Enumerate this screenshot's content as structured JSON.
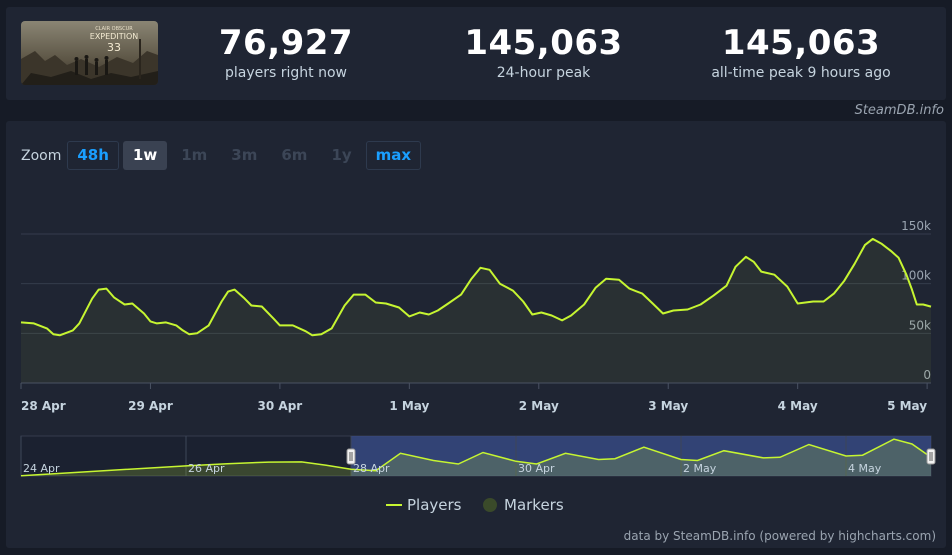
{
  "stats": [
    {
      "value": "76,927",
      "label": "players right now"
    },
    {
      "value": "145,063",
      "label": "24-hour peak"
    },
    {
      "value": "145,063",
      "label": "all-time peak 9 hours ago"
    }
  ],
  "game_image": {
    "alt": "Clair Obscur: Expedition 33 capsule",
    "logo_text": "EXPEDITION",
    "logo_number": "33",
    "small_text": "CLAIR OBSCUR"
  },
  "credit": "SteamDB.info",
  "zoom": {
    "label": "Zoom",
    "buttons": [
      {
        "label": "48h",
        "state": "link"
      },
      {
        "label": "1w",
        "state": "selected"
      },
      {
        "label": "1m",
        "state": "disabled"
      },
      {
        "label": "3m",
        "state": "disabled"
      },
      {
        "label": "6m",
        "state": "disabled"
      },
      {
        "label": "1y",
        "state": "disabled"
      },
      {
        "label": "max",
        "state": "link"
      }
    ]
  },
  "colors": {
    "line": "#c6f531",
    "marker": "#3a4a2a",
    "accent": "#1a9fff",
    "navigator_mask": "#3b4f8c"
  },
  "legend": [
    {
      "name": "Players",
      "icon": "line-icon"
    },
    {
      "name": "Markers",
      "icon": "circle-icon"
    }
  ],
  "footnote": "data by SteamDB.info (powered by highcharts.com)",
  "chart_data": {
    "type": "line",
    "ylim": [
      0,
      150000
    ],
    "yticks": [
      {
        "value": 150000,
        "label": "150k"
      },
      {
        "value": 100000,
        "label": "100k"
      },
      {
        "value": 50000,
        "label": "50k"
      },
      {
        "value": 0,
        "label": "0"
      }
    ],
    "xticks": [
      {
        "x": 0,
        "label": "28 Apr"
      },
      {
        "x": 1,
        "label": "29 Apr"
      },
      {
        "x": 2,
        "label": "30 Apr"
      },
      {
        "x": 3,
        "label": "1 May"
      },
      {
        "x": 4,
        "label": "2 May"
      },
      {
        "x": 5,
        "label": "3 May"
      },
      {
        "x": 6,
        "label": "4 May"
      },
      {
        "x": 7,
        "label": "5 May"
      }
    ],
    "x_unit": "days since 28 Apr 00:00",
    "grid": true,
    "legend_position": "bottom",
    "series": [
      {
        "name": "Players",
        "points": [
          [
            0.0,
            61000
          ],
          [
            0.1,
            60000
          ],
          [
            0.2,
            55000
          ],
          [
            0.25,
            49000
          ],
          [
            0.3,
            48000
          ],
          [
            0.4,
            53000
          ],
          [
            0.45,
            60000
          ],
          [
            0.55,
            85000
          ],
          [
            0.6,
            94000
          ],
          [
            0.66,
            95000
          ],
          [
            0.72,
            86000
          ],
          [
            0.8,
            79000
          ],
          [
            0.86,
            80000
          ],
          [
            0.95,
            70000
          ],
          [
            1.0,
            62000
          ],
          [
            1.05,
            60000
          ],
          [
            1.12,
            61000
          ],
          [
            1.2,
            58000
          ],
          [
            1.25,
            53000
          ],
          [
            1.3,
            49000
          ],
          [
            1.36,
            50000
          ],
          [
            1.45,
            58000
          ],
          [
            1.55,
            82000
          ],
          [
            1.6,
            92000
          ],
          [
            1.65,
            94000
          ],
          [
            1.72,
            86000
          ],
          [
            1.78,
            78000
          ],
          [
            1.86,
            77000
          ],
          [
            1.95,
            65000
          ],
          [
            2.0,
            58000
          ],
          [
            2.1,
            58000
          ],
          [
            2.2,
            52000
          ],
          [
            2.25,
            48000
          ],
          [
            2.32,
            49000
          ],
          [
            2.4,
            55000
          ],
          [
            2.5,
            78000
          ],
          [
            2.57,
            89000
          ],
          [
            2.66,
            89000
          ],
          [
            2.74,
            81000
          ],
          [
            2.82,
            80000
          ],
          [
            2.92,
            76000
          ],
          [
            3.0,
            67000
          ],
          [
            3.08,
            71000
          ],
          [
            3.15,
            69000
          ],
          [
            3.22,
            73000
          ],
          [
            3.3,
            80000
          ],
          [
            3.4,
            89000
          ],
          [
            3.48,
            105000
          ],
          [
            3.55,
            116000
          ],
          [
            3.62,
            114000
          ],
          [
            3.7,
            100000
          ],
          [
            3.8,
            93000
          ],
          [
            3.88,
            82000
          ],
          [
            3.95,
            69000
          ],
          [
            4.02,
            71000
          ],
          [
            4.1,
            68000
          ],
          [
            4.18,
            63000
          ],
          [
            4.25,
            68000
          ],
          [
            4.35,
            79000
          ],
          [
            4.44,
            96000
          ],
          [
            4.52,
            105000
          ],
          [
            4.62,
            104000
          ],
          [
            4.7,
            95000
          ],
          [
            4.8,
            90000
          ],
          [
            4.88,
            80000
          ],
          [
            4.96,
            70000
          ],
          [
            5.04,
            73000
          ],
          [
            5.15,
            74000
          ],
          [
            5.25,
            79000
          ],
          [
            5.35,
            88000
          ],
          [
            5.45,
            98000
          ],
          [
            5.52,
            117000
          ],
          [
            5.6,
            127000
          ],
          [
            5.66,
            122000
          ],
          [
            5.72,
            112000
          ],
          [
            5.82,
            109000
          ],
          [
            5.92,
            97000
          ],
          [
            6.0,
            80000
          ],
          [
            6.06,
            81000
          ],
          [
            6.12,
            82000
          ],
          [
            6.2,
            82000
          ],
          [
            6.28,
            90000
          ],
          [
            6.36,
            103000
          ],
          [
            6.44,
            120000
          ],
          [
            6.52,
            139000
          ],
          [
            6.58,
            145063
          ],
          [
            6.65,
            140000
          ],
          [
            6.72,
            133000
          ],
          [
            6.78,
            126000
          ],
          [
            6.84,
            109000
          ],
          [
            6.88,
            95000
          ],
          [
            6.92,
            79000
          ],
          [
            6.97,
            79000
          ],
          [
            7.03,
            76927
          ]
        ]
      }
    ],
    "navigator": {
      "xticks": [
        {
          "x": -4,
          "label": "24 Apr"
        },
        {
          "x": -2,
          "label": "26 Apr"
        },
        {
          "x": 0,
          "label": "28 Apr"
        },
        {
          "x": 2,
          "label": "30 Apr"
        },
        {
          "x": 4,
          "label": "2 May"
        },
        {
          "x": 6,
          "label": "4 May"
        }
      ],
      "points": [
        [
          -4.0,
          1000
        ],
        [
          -3.5,
          10000
        ],
        [
          -3.0,
          20000
        ],
        [
          -2.0,
          38000
        ],
        [
          -1.5,
          46000
        ],
        [
          -1.0,
          52000
        ],
        [
          -0.6,
          53000
        ],
        [
          -0.3,
          40000
        ],
        [
          0.0,
          25000
        ],
        [
          0.3,
          20000
        ],
        [
          0.6,
          85000
        ],
        [
          1.0,
          58000
        ],
        [
          1.3,
          45000
        ],
        [
          1.6,
          88000
        ],
        [
          2.0,
          55000
        ],
        [
          2.25,
          45000
        ],
        [
          2.6,
          85000
        ],
        [
          3.0,
          62000
        ],
        [
          3.2,
          65000
        ],
        [
          3.55,
          108000
        ],
        [
          4.0,
          62000
        ],
        [
          4.2,
          58000
        ],
        [
          4.52,
          95000
        ],
        [
          5.0,
          68000
        ],
        [
          5.2,
          70000
        ],
        [
          5.55,
          118000
        ],
        [
          6.0,
          75000
        ],
        [
          6.2,
          78000
        ],
        [
          6.58,
          138000
        ],
        [
          6.8,
          120000
        ],
        [
          7.03,
          70000
        ]
      ],
      "range": [
        0,
        7.03
      ],
      "ylim": [
        0,
        150000
      ]
    }
  }
}
